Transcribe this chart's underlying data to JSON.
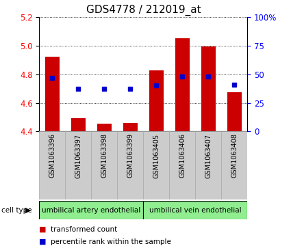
{
  "title": "GDS4778 / 212019_at",
  "samples": [
    "GSM1063396",
    "GSM1063397",
    "GSM1063398",
    "GSM1063399",
    "GSM1063405",
    "GSM1063406",
    "GSM1063407",
    "GSM1063408"
  ],
  "bar_bottoms": [
    4.4,
    4.4,
    4.4,
    4.4,
    4.4,
    4.4,
    4.4,
    4.4
  ],
  "bar_tops": [
    4.925,
    4.495,
    4.455,
    4.46,
    4.83,
    5.055,
    4.995,
    4.675
  ],
  "percentile_values": [
    4.775,
    4.7,
    4.7,
    4.7,
    4.725,
    4.785,
    4.785,
    4.73
  ],
  "ylim": [
    4.4,
    5.2
  ],
  "yticks_left": [
    4.4,
    4.6,
    4.8,
    5.0,
    5.2
  ],
  "yticks_right": [
    0,
    25,
    50,
    75,
    100
  ],
  "ytick_right_labels": [
    "0",
    "25",
    "50",
    "75",
    "100%"
  ],
  "bar_color": "#cc0000",
  "percentile_color": "#0000cc",
  "cell_type_groups": [
    {
      "label": "umbilical artery endothelial",
      "count": 4,
      "color": "#90ee90"
    },
    {
      "label": "umbilical vein endothelial",
      "count": 4,
      "color": "#90ee90"
    }
  ],
  "legend_bar_label": "transformed count",
  "legend_pct_label": "percentile rank within the sample",
  "cell_type_label": "cell type",
  "bg_color": "#ffffff",
  "title_fontsize": 11,
  "tick_fontsize": 8.5,
  "sample_fontsize": 7,
  "legend_fontsize": 7.5,
  "cell_fontsize": 7.5
}
